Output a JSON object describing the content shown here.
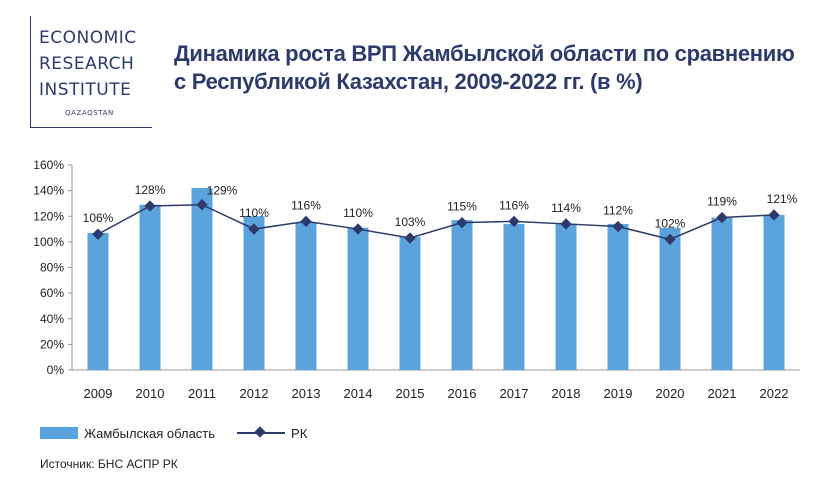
{
  "logo": {
    "line1": "ECONOMIC",
    "line2": "RESEARCH",
    "line3": "INSTITUTE",
    "sub": "QAZAQSTAN"
  },
  "chart_data": {
    "type": "bar",
    "title": "Динамика роста ВРП Жамбылской области по сравнению с Республикой Казахстан, 2009-2022 гг. (в %)",
    "title_lines": [
      "Динамика роста ВРП Жамбылской области по сравнению",
      "с Республикой Казахстан, 2009-2022 гг. (в %)"
    ],
    "categories": [
      "2009",
      "2010",
      "2011",
      "2012",
      "2013",
      "2014",
      "2015",
      "2016",
      "2017",
      "2018",
      "2019",
      "2020",
      "2021",
      "2022"
    ],
    "series": [
      {
        "name": "Жамбылская область",
        "kind": "bar",
        "color": "#5aa3dc",
        "values": [
          107,
          129,
          142,
          120,
          115,
          111,
          104,
          117,
          114,
          114,
          114,
          111,
          119,
          121
        ]
      },
      {
        "name": "РК",
        "kind": "line",
        "color": "#2d3a6b",
        "values": [
          106,
          128,
          129,
          110,
          116,
          110,
          103,
          115,
          116,
          114,
          112,
          102,
          119,
          121
        ],
        "data_labels": [
          "106%",
          "128%",
          "129%",
          "110%",
          "116%",
          "110%",
          "103%",
          "115%",
          "116%",
          "114%",
          "112%",
          "102%",
          "119%",
          "121%"
        ]
      }
    ],
    "ylim": [
      0,
      160
    ],
    "yticks": [
      "0%",
      "20%",
      "40%",
      "60%",
      "80%",
      "100%",
      "120%",
      "140%",
      "160%"
    ],
    "grid": false,
    "legend": "bottom-left",
    "source": "Источник: БНС АСПР РК"
  }
}
